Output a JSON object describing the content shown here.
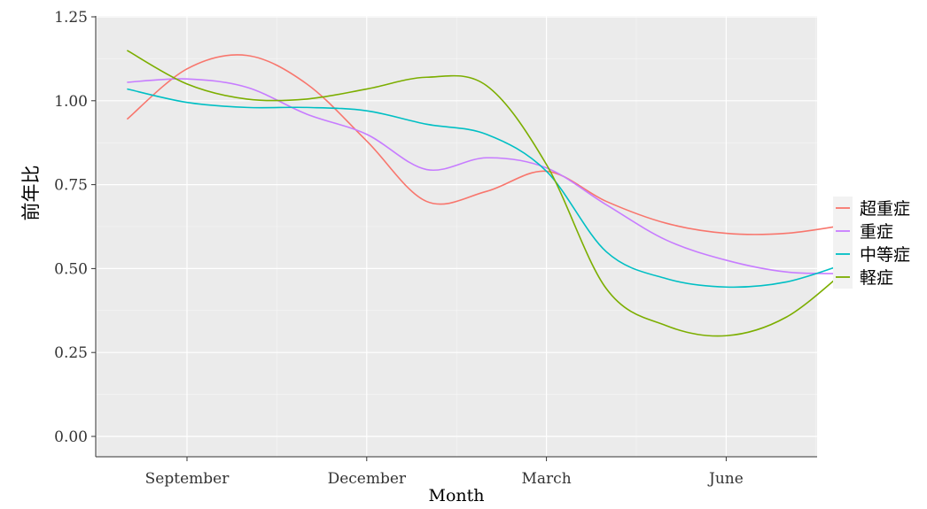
{
  "chart_data": {
    "type": "line",
    "title": "",
    "xlabel": "Month",
    "ylabel": "前年比",
    "x_tick_labels": [
      "September",
      "December",
      "March",
      "June"
    ],
    "y_tick_labels": [
      "0.00",
      "0.25",
      "0.50",
      "0.75",
      "1.00",
      "1.25"
    ],
    "y_ticks": [
      0,
      0.25,
      0.5,
      0.75,
      1.0,
      1.25
    ],
    "ylim": [
      0,
      1.25
    ],
    "grid": true,
    "legend_position": "right",
    "x_months_since_sep": [
      -1,
      0,
      1,
      2,
      3,
      4,
      5,
      6,
      7,
      8,
      9,
      10,
      11
    ],
    "series": [
      {
        "name": "超重症",
        "color": "#F8766D",
        "values": [
          0.945,
          1.095,
          1.135,
          1.05,
          0.88,
          0.7,
          0.73,
          0.79,
          0.7,
          0.635,
          0.605,
          0.605,
          0.63
        ]
      },
      {
        "name": "重症",
        "color": "#C77CFF",
        "values": [
          1.055,
          1.065,
          1.04,
          0.96,
          0.9,
          0.795,
          0.83,
          0.8,
          0.69,
          0.585,
          0.525,
          0.49,
          0.485
        ]
      },
      {
        "name": "中等症",
        "color": "#00BFC4",
        "values": [
          1.035,
          0.995,
          0.98,
          0.98,
          0.97,
          0.93,
          0.9,
          0.79,
          0.55,
          0.47,
          0.445,
          0.46,
          0.515
        ]
      },
      {
        "name": "軽症",
        "color": "#7CAE00",
        "values": [
          1.15,
          1.05,
          1.005,
          1.005,
          1.035,
          1.07,
          1.045,
          0.81,
          0.44,
          0.33,
          0.3,
          0.355,
          0.495
        ]
      }
    ]
  }
}
